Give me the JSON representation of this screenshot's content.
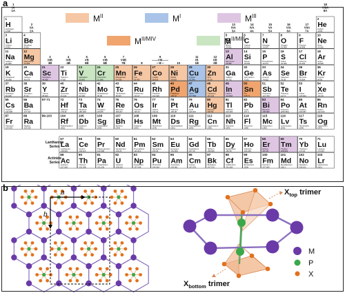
{
  "panel_labels": {
    "a": "a",
    "b": "b"
  },
  "legend": [
    {
      "label": "M",
      "sup": "II",
      "color": "#f6c7a4"
    },
    {
      "label": "M",
      "sup": "I",
      "color": "#a9c4e8"
    },
    {
      "label": "M",
      "sup": "III",
      "color": "#dec6e3"
    },
    {
      "label": "M",
      "sup": "II/M",
      "sup2": "IV",
      "color": "#f0a46e"
    },
    {
      "label": "M",
      "sup": "II/M",
      "sup2": "III",
      "color": "#c9e5c2"
    }
  ],
  "colors": {
    "MII": "#f6c7a4",
    "MI": "#a9c4e8",
    "MIII": "#dec6e3",
    "MIIMIV": "#f0a46e",
    "MIIMIII": "#c9e5c2",
    "none": "#ffffff"
  },
  "group_labels_top": [
    "1\nIA\n1A",
    "18\nVIIIA\n8A"
  ],
  "group_labels": [
    "2\nIIA\n2A",
    "3\nIIIB\n3B",
    "4\nIVB\n4B",
    "5\nVB\n5B",
    "6\nVIB\n6B",
    "7\nVIIB\n7B",
    "8",
    "9\n——VIII——\n—8—",
    "10",
    "11\nIB\n1B",
    "12\nIIB\n2B",
    "13\nIIIA\n3A",
    "14\nIVA\n4A",
    "15\nVA\n5A",
    "16\nVIA\n6A",
    "17\nVIIA\n7A"
  ],
  "elements": [
    {
      "n": "1",
      "s": "H",
      "name": "Hydrogen",
      "m": "1.008",
      "col": 1,
      "row": 1,
      "c": "none"
    },
    {
      "n": "2",
      "s": "He",
      "name": "Helium",
      "m": "4.003",
      "col": 18,
      "row": 1,
      "c": "none"
    },
    {
      "n": "3",
      "s": "Li",
      "name": "Lithium",
      "m": "6.941",
      "col": 1,
      "row": 2,
      "c": "none"
    },
    {
      "n": "4",
      "s": "Be",
      "name": "Beryllium",
      "m": "9.012",
      "col": 2,
      "row": 2,
      "c": "none"
    },
    {
      "n": "5",
      "s": "B",
      "name": "Boron",
      "m": "10.811",
      "col": 13,
      "row": 2,
      "c": "none"
    },
    {
      "n": "6",
      "s": "C",
      "name": "Carbon",
      "m": "12.011",
      "col": 14,
      "row": 2,
      "c": "none"
    },
    {
      "n": "7",
      "s": "N",
      "name": "Nitrogen",
      "m": "14.007",
      "col": 15,
      "row": 2,
      "c": "none"
    },
    {
      "n": "8",
      "s": "O",
      "name": "Oxygen",
      "m": "15.999",
      "col": 16,
      "row": 2,
      "c": "none"
    },
    {
      "n": "9",
      "s": "F",
      "name": "Fluorine",
      "m": "18.998",
      "col": 17,
      "row": 2,
      "c": "none"
    },
    {
      "n": "10",
      "s": "Ne",
      "name": "Neon",
      "m": "20.180",
      "col": 18,
      "row": 2,
      "c": "none"
    },
    {
      "n": "11",
      "s": "Na",
      "name": "Sodium",
      "m": "22.990",
      "col": 1,
      "row": 3,
      "c": "none"
    },
    {
      "n": "12",
      "s": "Mg",
      "name": "Magnesium",
      "m": "24.305",
      "col": 2,
      "row": 3,
      "c": "MII"
    },
    {
      "n": "13",
      "s": "Al",
      "name": "Aluminum",
      "m": "26.982",
      "col": 13,
      "row": 3,
      "c": "MIII"
    },
    {
      "n": "14",
      "s": "Si",
      "name": "Silicon",
      "m": "28.086",
      "col": 14,
      "row": 3,
      "c": "none"
    },
    {
      "n": "15",
      "s": "P",
      "name": "Phosphorus",
      "m": "30.974",
      "col": 15,
      "row": 3,
      "c": "none"
    },
    {
      "n": "16",
      "s": "S",
      "name": "Sulfur",
      "m": "32.066",
      "col": 16,
      "row": 3,
      "c": "none"
    },
    {
      "n": "17",
      "s": "Cl",
      "name": "Chlorine",
      "m": "35.453",
      "col": 17,
      "row": 3,
      "c": "none"
    },
    {
      "n": "18",
      "s": "Ar",
      "name": "Argon",
      "m": "39.948",
      "col": 18,
      "row": 3,
      "c": "none"
    },
    {
      "n": "19",
      "s": "K",
      "name": "Potassium",
      "m": "39.098",
      "col": 1,
      "row": 4,
      "c": "none"
    },
    {
      "n": "20",
      "s": "Ca",
      "name": "Calcium",
      "m": "40.078",
      "col": 2,
      "row": 4,
      "c": "none"
    },
    {
      "n": "21",
      "s": "Sc",
      "name": "Scandium",
      "m": "44.956",
      "col": 3,
      "row": 4,
      "c": "MIII"
    },
    {
      "n": "22",
      "s": "Ti",
      "name": "Titanium",
      "m": "47.88",
      "col": 4,
      "row": 4,
      "c": "none"
    },
    {
      "n": "23",
      "s": "V",
      "name": "Vanadium",
      "m": "50.942",
      "col": 5,
      "row": 4,
      "c": "MIIMIII"
    },
    {
      "n": "24",
      "s": "Cr",
      "name": "Chromium",
      "m": "51.996",
      "col": 6,
      "row": 4,
      "c": "MIIMIII"
    },
    {
      "n": "25",
      "s": "Mn",
      "name": "Manganese",
      "m": "54.938",
      "col": 7,
      "row": 4,
      "c": "MII"
    },
    {
      "n": "26",
      "s": "Fe",
      "name": "Iron",
      "m": "55.933",
      "col": 8,
      "row": 4,
      "c": "MII"
    },
    {
      "n": "27",
      "s": "Co",
      "name": "Cobalt",
      "m": "58.933",
      "col": 9,
      "row": 4,
      "c": "MII"
    },
    {
      "n": "28",
      "s": "Ni",
      "name": "Nickel",
      "m": "58.693",
      "col": 10,
      "row": 4,
      "c": "MII"
    },
    {
      "n": "29",
      "s": "Cu",
      "name": "Copper",
      "m": "63.546",
      "col": 11,
      "row": 4,
      "c": "MI"
    },
    {
      "n": "30",
      "s": "Zn",
      "name": "Zinc",
      "m": "65.39",
      "col": 12,
      "row": 4,
      "c": "MII"
    },
    {
      "n": "31",
      "s": "Ga",
      "name": "Gallium",
      "m": "69.732",
      "col": 13,
      "row": 4,
      "c": "none"
    },
    {
      "n": "32",
      "s": "Ge",
      "name": "Germanium",
      "m": "72.61",
      "col": 14,
      "row": 4,
      "c": "none"
    },
    {
      "n": "33",
      "s": "As",
      "name": "Arsenic",
      "m": "74.922",
      "col": 15,
      "row": 4,
      "c": "none"
    },
    {
      "n": "34",
      "s": "Se",
      "name": "Selenium",
      "m": "78.09",
      "col": 16,
      "row": 4,
      "c": "none"
    },
    {
      "n": "35",
      "s": "Br",
      "name": "Bromine",
      "m": "79.904",
      "col": 17,
      "row": 4,
      "c": "none"
    },
    {
      "n": "36",
      "s": "Kr",
      "name": "Krypton",
      "m": "84.80",
      "col": 18,
      "row": 4,
      "c": "none"
    },
    {
      "n": "37",
      "s": "Rb",
      "name": "Rubidium",
      "m": "84.468",
      "col": 1,
      "row": 5,
      "c": "none"
    },
    {
      "n": "38",
      "s": "Sr",
      "name": "Strontium",
      "m": "87.62",
      "col": 2,
      "row": 5,
      "c": "none"
    },
    {
      "n": "39",
      "s": "Y",
      "name": "Yttrium",
      "m": "88.906",
      "col": 3,
      "row": 5,
      "c": "none"
    },
    {
      "n": "40",
      "s": "Zr",
      "name": "Zirconium",
      "m": "91.224",
      "col": 4,
      "row": 5,
      "c": "none"
    },
    {
      "n": "41",
      "s": "Nb",
      "name": "Niobium",
      "m": "92.906",
      "col": 5,
      "row": 5,
      "c": "none"
    },
    {
      "n": "42",
      "s": "Mo",
      "name": "Molybdenum",
      "m": "95.95",
      "col": 6,
      "row": 5,
      "c": "none"
    },
    {
      "n": "43",
      "s": "Tc",
      "name": "Technetium",
      "m": "98.907",
      "col": 7,
      "row": 5,
      "c": "none"
    },
    {
      "n": "44",
      "s": "Ru",
      "name": "Ruthenium",
      "m": "101.07",
      "col": 8,
      "row": 5,
      "c": "none"
    },
    {
      "n": "45",
      "s": "Rh",
      "name": "Rhodium",
      "m": "102.906",
      "col": 9,
      "row": 5,
      "c": "none"
    },
    {
      "n": "46",
      "s": "Pd",
      "name": "Palladium",
      "m": "106.42",
      "col": 10,
      "row": 5,
      "c": "MIIMIV"
    },
    {
      "n": "47",
      "s": "Ag",
      "name": "Silver",
      "m": "107.868",
      "col": 11,
      "row": 5,
      "c": "MI"
    },
    {
      "n": "48",
      "s": "Cd",
      "name": "Cadmium",
      "m": "112.411",
      "col": 12,
      "row": 5,
      "c": "MII"
    },
    {
      "n": "49",
      "s": "In",
      "name": "Indium",
      "m": "114.818",
      "col": 13,
      "row": 5,
      "c": "MIII"
    },
    {
      "n": "50",
      "s": "Sn",
      "name": "Tin",
      "m": "118.71",
      "col": 14,
      "row": 5,
      "c": "MIIMIV"
    },
    {
      "n": "51",
      "s": "Sb",
      "name": "Antimony",
      "m": "121.760",
      "col": 15,
      "row": 5,
      "c": "none"
    },
    {
      "n": "52",
      "s": "Te",
      "name": "Tellurium",
      "m": "127.6",
      "col": 16,
      "row": 5,
      "c": "none"
    },
    {
      "n": "53",
      "s": "I",
      "name": "Iodine",
      "m": "126.904",
      "col": 17,
      "row": 5,
      "c": "none"
    },
    {
      "n": "54",
      "s": "Xe",
      "name": "Xenon",
      "m": "131.29",
      "col": 18,
      "row": 5,
      "c": "none"
    },
    {
      "n": "55",
      "s": "Cs",
      "name": "Cesium",
      "m": "132.905",
      "col": 1,
      "row": 6,
      "c": "none"
    },
    {
      "n": "56",
      "s": "Ba",
      "name": "Barium",
      "m": "137.327",
      "col": 2,
      "row": 6,
      "c": "none"
    },
    {
      "n": "57-71",
      "s": "",
      "name": "",
      "m": "",
      "col": 3,
      "row": 6,
      "c": "none"
    },
    {
      "n": "72",
      "s": "Hf",
      "name": "Hafnium",
      "m": "178.49",
      "col": 4,
      "row": 6,
      "c": "none"
    },
    {
      "n": "73",
      "s": "Ta",
      "name": "Tantalum",
      "m": "180.948",
      "col": 5,
      "row": 6,
      "c": "none"
    },
    {
      "n": "74",
      "s": "W",
      "name": "Tungsten",
      "m": "183.85",
      "col": 6,
      "row": 6,
      "c": "none"
    },
    {
      "n": "75",
      "s": "Re",
      "name": "Rhenium",
      "m": "186.207",
      "col": 7,
      "row": 6,
      "c": "none"
    },
    {
      "n": "76",
      "s": "Os",
      "name": "Osmium",
      "m": "190.23",
      "col": 8,
      "row": 6,
      "c": "none"
    },
    {
      "n": "77",
      "s": "Ir",
      "name": "Iridium",
      "m": "192.22",
      "col": 9,
      "row": 6,
      "c": "none"
    },
    {
      "n": "78",
      "s": "Pt",
      "name": "Platinum",
      "m": "195.08",
      "col": 10,
      "row": 6,
      "c": "none"
    },
    {
      "n": "79",
      "s": "Au",
      "name": "Gold",
      "m": "196.967",
      "col": 11,
      "row": 6,
      "c": "none"
    },
    {
      "n": "80",
      "s": "Hg",
      "name": "Mercury",
      "m": "200.59",
      "col": 12,
      "row": 6,
      "c": "MII"
    },
    {
      "n": "81",
      "s": "Tl",
      "name": "Thallium",
      "m": "204.383",
      "col": 13,
      "row": 6,
      "c": "none"
    },
    {
      "n": "82",
      "s": "Pb",
      "name": "Lead",
      "m": "207.2",
      "col": 14,
      "row": 6,
      "c": "none"
    },
    {
      "n": "83",
      "s": "Bi",
      "name": "Bismuth",
      "m": "208.980",
      "col": 15,
      "row": 6,
      "c": "MIII"
    },
    {
      "n": "84",
      "s": "Po",
      "name": "Polonium",
      "m": "[208.982]",
      "col": 16,
      "row": 6,
      "c": "none"
    },
    {
      "n": "85",
      "s": "At",
      "name": "Astatine",
      "m": "209.987",
      "col": 17,
      "row": 6,
      "c": "none"
    },
    {
      "n": "86",
      "s": "Rn",
      "name": "Radon",
      "m": "222.018",
      "col": 18,
      "row": 6,
      "c": "none"
    },
    {
      "n": "87",
      "s": "Fr",
      "name": "Francium",
      "m": "223.020",
      "col": 1,
      "row": 7,
      "c": "none"
    },
    {
      "n": "88",
      "s": "Ra",
      "name": "Radium",
      "m": "226.025",
      "col": 2,
      "row": 7,
      "c": "none"
    },
    {
      "n": "89-103",
      "s": "",
      "name": "",
      "m": "",
      "col": 3,
      "row": 7,
      "c": "none"
    },
    {
      "n": "104",
      "s": "Rf",
      "name": "Rutherfordium",
      "m": "[261]",
      "col": 4,
      "row": 7,
      "c": "none"
    },
    {
      "n": "105",
      "s": "Db",
      "name": "Dubnium",
      "m": "[262]",
      "col": 5,
      "row": 7,
      "c": "none"
    },
    {
      "n": "106",
      "s": "Sg",
      "name": "Seaborgium",
      "m": "[266]",
      "col": 6,
      "row": 7,
      "c": "none"
    },
    {
      "n": "107",
      "s": "Bh",
      "name": "Bohrium",
      "m": "[264]",
      "col": 7,
      "row": 7,
      "c": "none"
    },
    {
      "n": "108",
      "s": "Hs",
      "name": "Hassium",
      "m": "[269]",
      "col": 8,
      "row": 7,
      "c": "none"
    },
    {
      "n": "109",
      "s": "Mt",
      "name": "Meitnerium",
      "m": "[278]",
      "col": 9,
      "row": 7,
      "c": "none"
    },
    {
      "n": "110",
      "s": "Ds",
      "name": "Darmstadtium",
      "m": "[281]",
      "col": 10,
      "row": 7,
      "c": "none"
    },
    {
      "n": "111",
      "s": "Rg",
      "name": "Roentgenium",
      "m": "[280]",
      "col": 11,
      "row": 7,
      "c": "none"
    },
    {
      "n": "112",
      "s": "Cn",
      "name": "Copernicium",
      "m": "[285]",
      "col": 12,
      "row": 7,
      "c": "none"
    },
    {
      "n": "113",
      "s": "Nh",
      "name": "Nihonium",
      "m": "[286]",
      "col": 13,
      "row": 7,
      "c": "none"
    },
    {
      "n": "114",
      "s": "Fl",
      "name": "Flerovium",
      "m": "[289]",
      "col": 14,
      "row": 7,
      "c": "none"
    },
    {
      "n": "115",
      "s": "Mc",
      "name": "Moscovium",
      "m": "[289]",
      "col": 15,
      "row": 7,
      "c": "none"
    },
    {
      "n": "116",
      "s": "Lv",
      "name": "Livermorium",
      "m": "[293]",
      "col": 16,
      "row": 7,
      "c": "none"
    },
    {
      "n": "117",
      "s": "Ts",
      "name": "Tennessine",
      "m": "[294]",
      "col": 17,
      "row": 7,
      "c": "none"
    },
    {
      "n": "118",
      "s": "Og",
      "name": "Oganesson",
      "m": "[294]",
      "col": 18,
      "row": 7,
      "c": "none"
    }
  ],
  "series_labels": [
    {
      "text": "Lanthanide\nSeries",
      "row": 8
    },
    {
      "text": "Actinide\nSeries",
      "row": 9
    }
  ],
  "f_elements": [
    {
      "n": "57",
      "s": "La",
      "name": "Lanthanum",
      "m": "138.906",
      "col": 4,
      "row": 8,
      "c": "none"
    },
    {
      "n": "58",
      "s": "Ce",
      "name": "Cerium",
      "m": "140.115",
      "col": 5,
      "row": 8,
      "c": "none"
    },
    {
      "n": "59",
      "s": "Pr",
      "name": "Praseodymium",
      "m": "140.908",
      "col": 6,
      "row": 8,
      "c": "none"
    },
    {
      "n": "60",
      "s": "Nd",
      "name": "Neodymium",
      "m": "144.24",
      "col": 7,
      "row": 8,
      "c": "none"
    },
    {
      "n": "61",
      "s": "Pm",
      "name": "Promethium",
      "m": "144.913",
      "col": 8,
      "row": 8,
      "c": "none"
    },
    {
      "n": "62",
      "s": "Sm",
      "name": "Samarium",
      "m": "150.36",
      "col": 9,
      "row": 8,
      "c": "none"
    },
    {
      "n": "63",
      "s": "Eu",
      "name": "Europium",
      "m": "151.966",
      "col": 10,
      "row": 8,
      "c": "none"
    },
    {
      "n": "64",
      "s": "Gd",
      "name": "Gadolinium",
      "m": "157.25",
      "col": 11,
      "row": 8,
      "c": "none"
    },
    {
      "n": "65",
      "s": "Tb",
      "name": "Terbium",
      "m": "158.925",
      "col": 12,
      "row": 8,
      "c": "none"
    },
    {
      "n": "66",
      "s": "Dy",
      "name": "Dysprosium",
      "m": "162.50",
      "col": 13,
      "row": 8,
      "c": "none"
    },
    {
      "n": "67",
      "s": "Ho",
      "name": "Holmium",
      "m": "164.930",
      "col": 14,
      "row": 8,
      "c": "none"
    },
    {
      "n": "68",
      "s": "Er",
      "name": "Erbium",
      "m": "167.26",
      "col": 15,
      "row": 8,
      "c": "MIII"
    },
    {
      "n": "69",
      "s": "Tm",
      "name": "Thulium",
      "m": "168.934",
      "col": 16,
      "row": 8,
      "c": "MIII"
    },
    {
      "n": "70",
      "s": "Yb",
      "name": "Ytterbium",
      "m": "173.04",
      "col": 17,
      "row": 8,
      "c": "none"
    },
    {
      "n": "71",
      "s": "Lu",
      "name": "Lutetium",
      "m": "174.967",
      "col": 18,
      "row": 8,
      "c": "none"
    },
    {
      "n": "89",
      "s": "Ac",
      "name": "Actinium",
      "m": "227.028",
      "col": 4,
      "row": 9,
      "c": "none"
    },
    {
      "n": "90",
      "s": "Th",
      "name": "Thorium",
      "m": "232.038",
      "col": 5,
      "row": 9,
      "c": "none"
    },
    {
      "n": "91",
      "s": "Pa",
      "name": "Protactinium",
      "m": "231.036",
      "col": 6,
      "row": 9,
      "c": "none"
    },
    {
      "n": "92",
      "s": "U",
      "name": "Uranium",
      "m": "238.029",
      "col": 7,
      "row": 9,
      "c": "none"
    },
    {
      "n": "93",
      "s": "Np",
      "name": "Neptunium",
      "m": "237.048",
      "col": 8,
      "row": 9,
      "c": "none"
    },
    {
      "n": "94",
      "s": "Pu",
      "name": "Plutonium",
      "m": "244.064",
      "col": 9,
      "row": 9,
      "c": "none"
    },
    {
      "n": "95",
      "s": "Am",
      "name": "Americium",
      "m": "243.061",
      "col": 10,
      "row": 9,
      "c": "none"
    },
    {
      "n": "96",
      "s": "Cm",
      "name": "Curium",
      "m": "247.070",
      "col": 11,
      "row": 9,
      "c": "none"
    },
    {
      "n": "97",
      "s": "Bk",
      "name": "Berkelium",
      "m": "247.070",
      "col": 12,
      "row": 9,
      "c": "none"
    },
    {
      "n": "98",
      "s": "Cf",
      "name": "Californium",
      "m": "251.080",
      "col": 13,
      "row": 9,
      "c": "none"
    },
    {
      "n": "99",
      "s": "Es",
      "name": "Einsteinium",
      "m": "[254]",
      "col": 14,
      "row": 9,
      "c": "none"
    },
    {
      "n": "100",
      "s": "Fm",
      "name": "Fermium",
      "m": "257.095",
      "col": 15,
      "row": 9,
      "c": "none"
    },
    {
      "n": "101",
      "s": "Md",
      "name": "Mendelevium",
      "m": "258.1",
      "col": 16,
      "row": 9,
      "c": "none"
    },
    {
      "n": "102",
      "s": "No",
      "name": "Nobelium",
      "m": "259.101",
      "col": 17,
      "row": 9,
      "c": "none"
    },
    {
      "n": "103",
      "s": "Lr",
      "name": "Lawrencium",
      "m": "[262]",
      "col": 18,
      "row": 9,
      "c": "none"
    }
  ],
  "lattice": {
    "a_label": "a",
    "b_label": "b"
  },
  "structure": {
    "x_top_label": "X",
    "x_top_sub": "top",
    "x_top_suffix": " trimer",
    "x_bottom_label": "X",
    "x_bottom_sub": "bottom",
    "x_bottom_suffix": " trimer",
    "legend": [
      {
        "label": "M",
        "color": "#6a3aa8"
      },
      {
        "label": "P",
        "color": "#3aa84a"
      },
      {
        "label": "X",
        "color": "#e2711d"
      }
    ]
  }
}
